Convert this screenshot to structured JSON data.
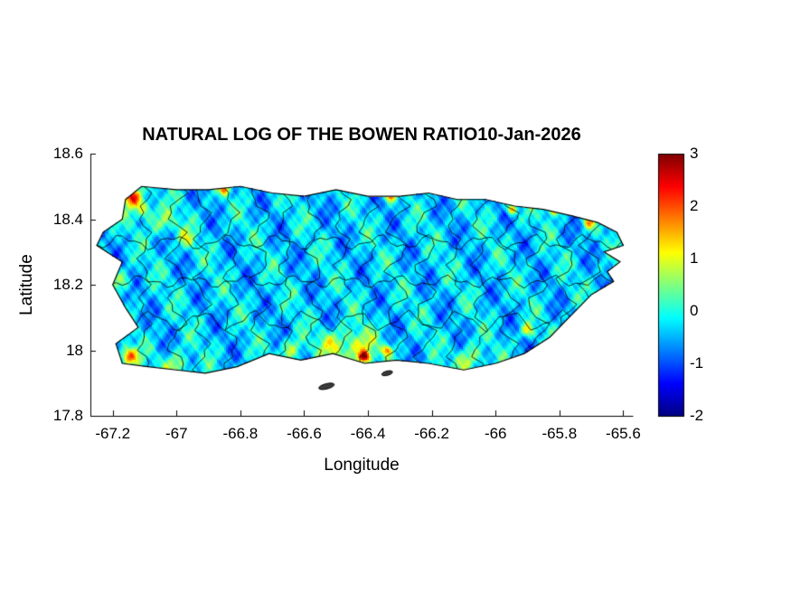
{
  "figure": {
    "title": "NATURAL LOG OF THE BOWEN RATIO10-Jan-2026",
    "date": "10-Jan-2026",
    "xlabel": "Longitude",
    "ylabel": "Latitude",
    "background": "#ffffff"
  },
  "chart_data": {
    "type": "heatmap",
    "title": "NATURAL LOG OF THE BOWEN RATIO10-Jan-2026",
    "xlabel": "Longitude",
    "ylabel": "Latitude",
    "xlim": [
      -67.27,
      -65.57
    ],
    "ylim": [
      17.8,
      18.6
    ],
    "xticks": [
      -67.2,
      -67,
      -66.8,
      -66.6,
      -66.4,
      -66.2,
      -66,
      -65.8,
      -65.6
    ],
    "xtick_labels": [
      "-67.2",
      "-67",
      "-66.8",
      "-66.6",
      "-66.4",
      "-66.2",
      "-66",
      "-65.8",
      "-65.6"
    ],
    "yticks": [
      17.8,
      18,
      18.2,
      18.4,
      18.6
    ],
    "ytick_labels": [
      "17.8",
      "18",
      "18.2",
      "18.4",
      "18.6"
    ],
    "grid": false,
    "legend": "none",
    "colorbar": {
      "min": -2,
      "max": 3,
      "ticks": [
        3,
        2,
        1,
        0,
        -1,
        -2
      ],
      "tick_labels": [
        "3",
        "2",
        "1",
        "0",
        "-1",
        "-2"
      ],
      "colormap": "jet",
      "position": "right"
    },
    "region": "Puerto Rico with municipality boundaries",
    "value_summary": "ln(Bowen ratio): mostly -1 to 0.5 (blue/cyan) across the island; warm anomalies (1 to 3, yellow/orange/red) at the northwest tip, southwest corner, south-central coast and scattered north-coast points",
    "island_outline": [
      [
        -67.16,
        18.46
      ],
      [
        -67.11,
        18.5
      ],
      [
        -67.0,
        18.49
      ],
      [
        -66.9,
        18.49
      ],
      [
        -66.8,
        18.5
      ],
      [
        -66.7,
        18.48
      ],
      [
        -66.6,
        18.47
      ],
      [
        -66.5,
        18.49
      ],
      [
        -66.4,
        18.47
      ],
      [
        -66.3,
        18.47
      ],
      [
        -66.21,
        18.48
      ],
      [
        -66.12,
        18.46
      ],
      [
        -66.03,
        18.46
      ],
      [
        -65.94,
        18.44
      ],
      [
        -65.85,
        18.43
      ],
      [
        -65.76,
        18.41
      ],
      [
        -65.68,
        18.39
      ],
      [
        -65.62,
        18.36
      ],
      [
        -65.6,
        18.32
      ],
      [
        -65.66,
        18.3
      ],
      [
        -65.61,
        18.27
      ],
      [
        -65.65,
        18.24
      ],
      [
        -65.63,
        18.21
      ],
      [
        -65.7,
        18.17
      ],
      [
        -65.76,
        18.11
      ],
      [
        -65.83,
        18.04
      ],
      [
        -65.91,
        17.99
      ],
      [
        -66.0,
        17.96
      ],
      [
        -66.1,
        17.94
      ],
      [
        -66.21,
        17.96
      ],
      [
        -66.31,
        17.97
      ],
      [
        -66.41,
        17.96
      ],
      [
        -66.51,
        17.99
      ],
      [
        -66.61,
        17.97
      ],
      [
        -66.71,
        17.99
      ],
      [
        -66.81,
        17.95
      ],
      [
        -66.91,
        17.93
      ],
      [
        -67.0,
        17.94
      ],
      [
        -67.09,
        17.95
      ],
      [
        -67.17,
        17.96
      ],
      [
        -67.19,
        18.02
      ],
      [
        -67.12,
        18.07
      ],
      [
        -67.16,
        18.13
      ],
      [
        -67.2,
        18.2
      ],
      [
        -67.17,
        18.27
      ],
      [
        -67.25,
        18.32
      ],
      [
        -67.23,
        18.36
      ],
      [
        -67.17,
        18.4
      ]
    ],
    "islets": [
      [
        -66.53,
        17.89,
        0.05,
        0.016
      ],
      [
        -66.34,
        17.93,
        0.035,
        0.013
      ]
    ],
    "hotspots": [
      [
        -67.14,
        18.47,
        2.8,
        0.03
      ],
      [
        -67.1,
        18.43,
        1.4,
        0.03
      ],
      [
        -67.04,
        18.39,
        1.1,
        0.035
      ],
      [
        -66.97,
        18.34,
        0.9,
        0.03
      ],
      [
        -66.85,
        18.49,
        2.0,
        0.015
      ],
      [
        -66.7,
        18.5,
        1.8,
        0.012
      ],
      [
        -66.33,
        18.47,
        2.2,
        0.015
      ],
      [
        -65.95,
        18.43,
        2.2,
        0.015
      ],
      [
        -65.82,
        18.43,
        2.4,
        0.018
      ],
      [
        -65.71,
        18.39,
        1.6,
        0.018
      ],
      [
        -67.15,
        17.98,
        2.4,
        0.028
      ],
      [
        -67.0,
        17.95,
        1.2,
        0.04
      ],
      [
        -66.64,
        18.0,
        1.1,
        0.035
      ],
      [
        -66.52,
        18.02,
        0.9,
        0.04
      ],
      [
        -66.44,
        18.0,
        1.5,
        0.06
      ],
      [
        -66.41,
        17.98,
        2.6,
        0.015
      ],
      [
        -66.34,
        18.0,
        2.0,
        0.015
      ],
      [
        -66.08,
        17.97,
        1.2,
        0.04
      ],
      [
        -65.9,
        18.06,
        1.4,
        0.02
      ],
      [
        -67.17,
        18.21,
        0.8,
        0.03
      ]
    ],
    "base_field": {
      "offset": -0.35,
      "waves": [
        [
          0.35,
          34,
          21,
          1.2
        ],
        [
          0.28,
          55,
          -38,
          3.1
        ],
        [
          0.22,
          87,
          65,
          5.0
        ],
        [
          0.18,
          140,
          -110,
          0.7
        ],
        [
          0.12,
          230,
          170,
          2.3
        ],
        [
          0.1,
          380,
          290,
          4.1
        ]
      ]
    },
    "boundaries": {
      "seed": 7,
      "vertical_lons": [
        -67.1,
        -67.0,
        -66.92,
        -66.83,
        -66.74,
        -66.66,
        -66.57,
        -66.48,
        -66.4,
        -66.31,
        -66.22,
        -66.13,
        -66.05,
        -65.96,
        -65.87,
        -65.78,
        -65.7
      ],
      "horizontal_lats": [
        18.09,
        18.21,
        18.33
      ]
    }
  }
}
